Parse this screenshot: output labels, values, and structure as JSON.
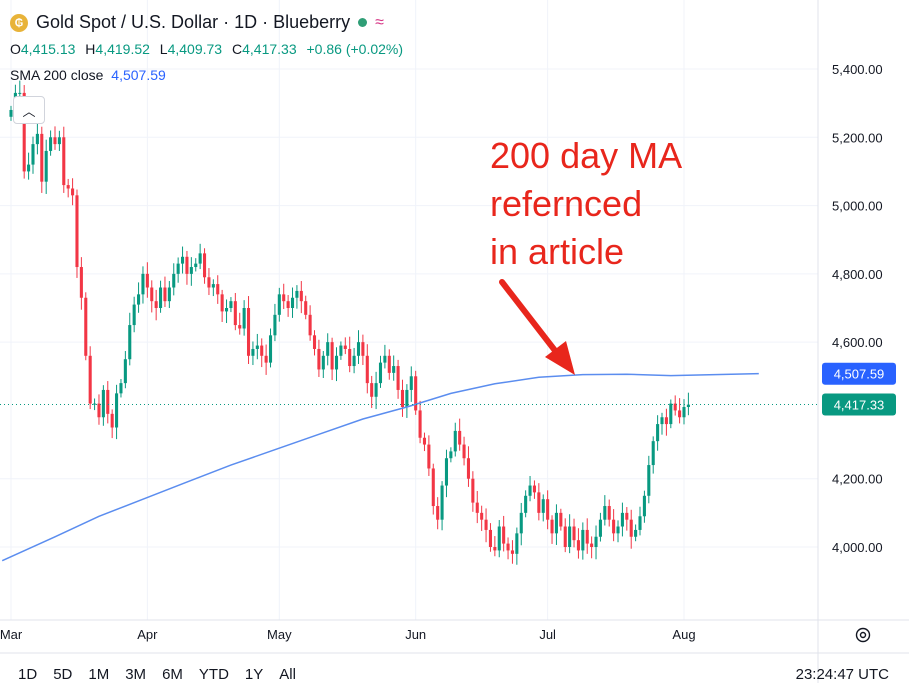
{
  "legend": {
    "title": "Gold Spot / U.S. Dollar · 1D · Blueberry",
    "logo_icon": "gold-coin-icon",
    "ohlc": [
      {
        "k": "O",
        "v": "4,415.13"
      },
      {
        "k": "H",
        "v": "4,419.52"
      },
      {
        "k": "L",
        "v": "4,409.73"
      },
      {
        "k": "C",
        "v": "4,417.33"
      },
      {
        "k": "",
        "v": "+0.86 (+0.02%)"
      }
    ],
    "sma_label": "SMA 200 close",
    "sma_value": "4,507.59"
  },
  "annotation": "200 day MA\nrefernced\nin article",
  "range_buttons": [
    "1D",
    "5D",
    "1M",
    "3M",
    "6M",
    "YTD",
    "1Y",
    "All"
  ],
  "clock": "23:24:47 UTC",
  "colors": {
    "up": "#089981",
    "down": "#f23645",
    "sma": "#5b8def",
    "price_tag": "#089981",
    "sma_tag": "#2962ff",
    "arrow": "#e8261c"
  },
  "chart_data": {
    "type": "candlestick",
    "y_ticks": [
      "5,400.00",
      "5,200.00",
      "5,000.00",
      "4,800.00",
      "4,600.00",
      "4,200.00",
      "4,000.00"
    ],
    "y_tick_values": [
      5400,
      5200,
      5000,
      4800,
      4600,
      4200,
      4000
    ],
    "ylim": [
      3800,
      5500
    ],
    "x_ticks": [
      {
        "label": "Mar",
        "day": 0
      },
      {
        "label": "Apr",
        "day": 31
      },
      {
        "label": "May",
        "day": 61
      },
      {
        "label": "Jun",
        "day": 92
      },
      {
        "label": "Jul",
        "day": 122
      },
      {
        "label": "Aug",
        "day": 153
      }
    ],
    "xlim": [
      -2,
      184
    ],
    "last_price": 4417.33,
    "last_price_label": "4,417.33",
    "sma_last": 4507.59,
    "sma_last_label": "4,507.59",
    "grid": true,
    "sma_points": [
      [
        -2,
        3960
      ],
      [
        10,
        4030
      ],
      [
        20,
        4090
      ],
      [
        30,
        4140
      ],
      [
        40,
        4190
      ],
      [
        50,
        4240
      ],
      [
        60,
        4285
      ],
      [
        70,
        4330
      ],
      [
        80,
        4375
      ],
      [
        90,
        4410
      ],
      [
        100,
        4450
      ],
      [
        110,
        4478
      ],
      [
        120,
        4497
      ],
      [
        130,
        4505
      ],
      [
        140,
        4506
      ],
      [
        150,
        4502
      ],
      [
        160,
        4505
      ],
      [
        170,
        4508
      ]
    ],
    "closes": [
      [
        0,
        5280
      ],
      [
        1,
        5330
      ],
      [
        2,
        5330
      ],
      [
        3,
        5100
      ],
      [
        4,
        5120
      ],
      [
        5,
        5180
      ],
      [
        6,
        5210
      ],
      [
        7,
        5070
      ],
      [
        8,
        5160
      ],
      [
        9,
        5200
      ],
      [
        10,
        5180
      ],
      [
        11,
        5200
      ],
      [
        12,
        5060
      ],
      [
        13,
        5050
      ],
      [
        14,
        5030
      ],
      [
        15,
        4820
      ],
      [
        16,
        4730
      ],
      [
        17,
        4560
      ],
      [
        18,
        4420
      ],
      [
        19,
        4420
      ],
      [
        20,
        4380
      ],
      [
        21,
        4460
      ],
      [
        22,
        4390
      ],
      [
        23,
        4350
      ],
      [
        24,
        4450
      ],
      [
        25,
        4480
      ],
      [
        26,
        4550
      ],
      [
        27,
        4650
      ],
      [
        28,
        4710
      ],
      [
        29,
        4740
      ],
      [
        30,
        4800
      ],
      [
        31,
        4760
      ],
      [
        32,
        4720
      ],
      [
        33,
        4700
      ],
      [
        34,
        4760
      ],
      [
        35,
        4720
      ],
      [
        36,
        4760
      ],
      [
        37,
        4800
      ],
      [
        38,
        4830
      ],
      [
        39,
        4850
      ],
      [
        40,
        4800
      ],
      [
        41,
        4820
      ],
      [
        42,
        4830
      ],
      [
        43,
        4860
      ],
      [
        44,
        4790
      ],
      [
        45,
        4760
      ],
      [
        46,
        4770
      ],
      [
        47,
        4740
      ],
      [
        48,
        4690
      ],
      [
        49,
        4700
      ],
      [
        50,
        4720
      ],
      [
        51,
        4650
      ],
      [
        52,
        4640
      ],
      [
        53,
        4700
      ],
      [
        54,
        4560
      ],
      [
        55,
        4580
      ],
      [
        56,
        4590
      ],
      [
        57,
        4560
      ],
      [
        58,
        4540
      ],
      [
        59,
        4620
      ],
      [
        60,
        4680
      ],
      [
        61,
        4740
      ],
      [
        62,
        4720
      ],
      [
        63,
        4700
      ],
      [
        64,
        4730
      ],
      [
        65,
        4750
      ],
      [
        66,
        4720
      ],
      [
        67,
        4680
      ],
      [
        68,
        4620
      ],
      [
        69,
        4580
      ],
      [
        70,
        4520
      ],
      [
        71,
        4560
      ],
      [
        72,
        4600
      ],
      [
        73,
        4520
      ],
      [
        74,
        4560
      ],
      [
        75,
        4590
      ],
      [
        76,
        4580
      ],
      [
        77,
        4530
      ],
      [
        78,
        4560
      ],
      [
        79,
        4600
      ],
      [
        80,
        4560
      ],
      [
        81,
        4480
      ],
      [
        82,
        4440
      ],
      [
        83,
        4480
      ],
      [
        84,
        4540
      ],
      [
        85,
        4560
      ],
      [
        86,
        4510
      ],
      [
        87,
        4530
      ],
      [
        88,
        4460
      ],
      [
        89,
        4410
      ],
      [
        90,
        4460
      ],
      [
        91,
        4500
      ],
      [
        92,
        4400
      ],
      [
        93,
        4320
      ],
      [
        94,
        4300
      ],
      [
        95,
        4230
      ],
      [
        96,
        4120
      ],
      [
        97,
        4080
      ],
      [
        98,
        4180
      ],
      [
        99,
        4260
      ],
      [
        100,
        4280
      ],
      [
        101,
        4340
      ],
      [
        102,
        4300
      ],
      [
        103,
        4260
      ],
      [
        104,
        4200
      ],
      [
        105,
        4130
      ],
      [
        106,
        4100
      ],
      [
        107,
        4080
      ],
      [
        108,
        4050
      ],
      [
        109,
        4000
      ],
      [
        110,
        3990
      ],
      [
        111,
        4060
      ],
      [
        112,
        4010
      ],
      [
        113,
        3990
      ],
      [
        114,
        3980
      ],
      [
        115,
        4040
      ],
      [
        116,
        4100
      ],
      [
        117,
        4150
      ],
      [
        118,
        4180
      ],
      [
        119,
        4160
      ],
      [
        120,
        4100
      ],
      [
        121,
        4140
      ],
      [
        122,
        4080
      ],
      [
        123,
        4040
      ],
      [
        124,
        4100
      ],
      [
        125,
        4060
      ],
      [
        126,
        4000
      ],
      [
        127,
        4060
      ],
      [
        128,
        4020
      ],
      [
        129,
        3990
      ],
      [
        130,
        4050
      ],
      [
        131,
        4010
      ],
      [
        132,
        4000
      ],
      [
        133,
        4030
      ],
      [
        134,
        4080
      ],
      [
        135,
        4120
      ],
      [
        136,
        4080
      ],
      [
        137,
        4040
      ],
      [
        138,
        4060
      ],
      [
        139,
        4100
      ],
      [
        140,
        4080
      ],
      [
        141,
        4030
      ],
      [
        142,
        4050
      ],
      [
        143,
        4090
      ],
      [
        144,
        4150
      ],
      [
        145,
        4240
      ],
      [
        146,
        4310
      ],
      [
        147,
        4360
      ],
      [
        148,
        4380
      ],
      [
        149,
        4360
      ],
      [
        150,
        4420
      ],
      [
        151,
        4400
      ],
      [
        152,
        4380
      ],
      [
        153,
        4410
      ],
      [
        154,
        4417
      ]
    ]
  }
}
